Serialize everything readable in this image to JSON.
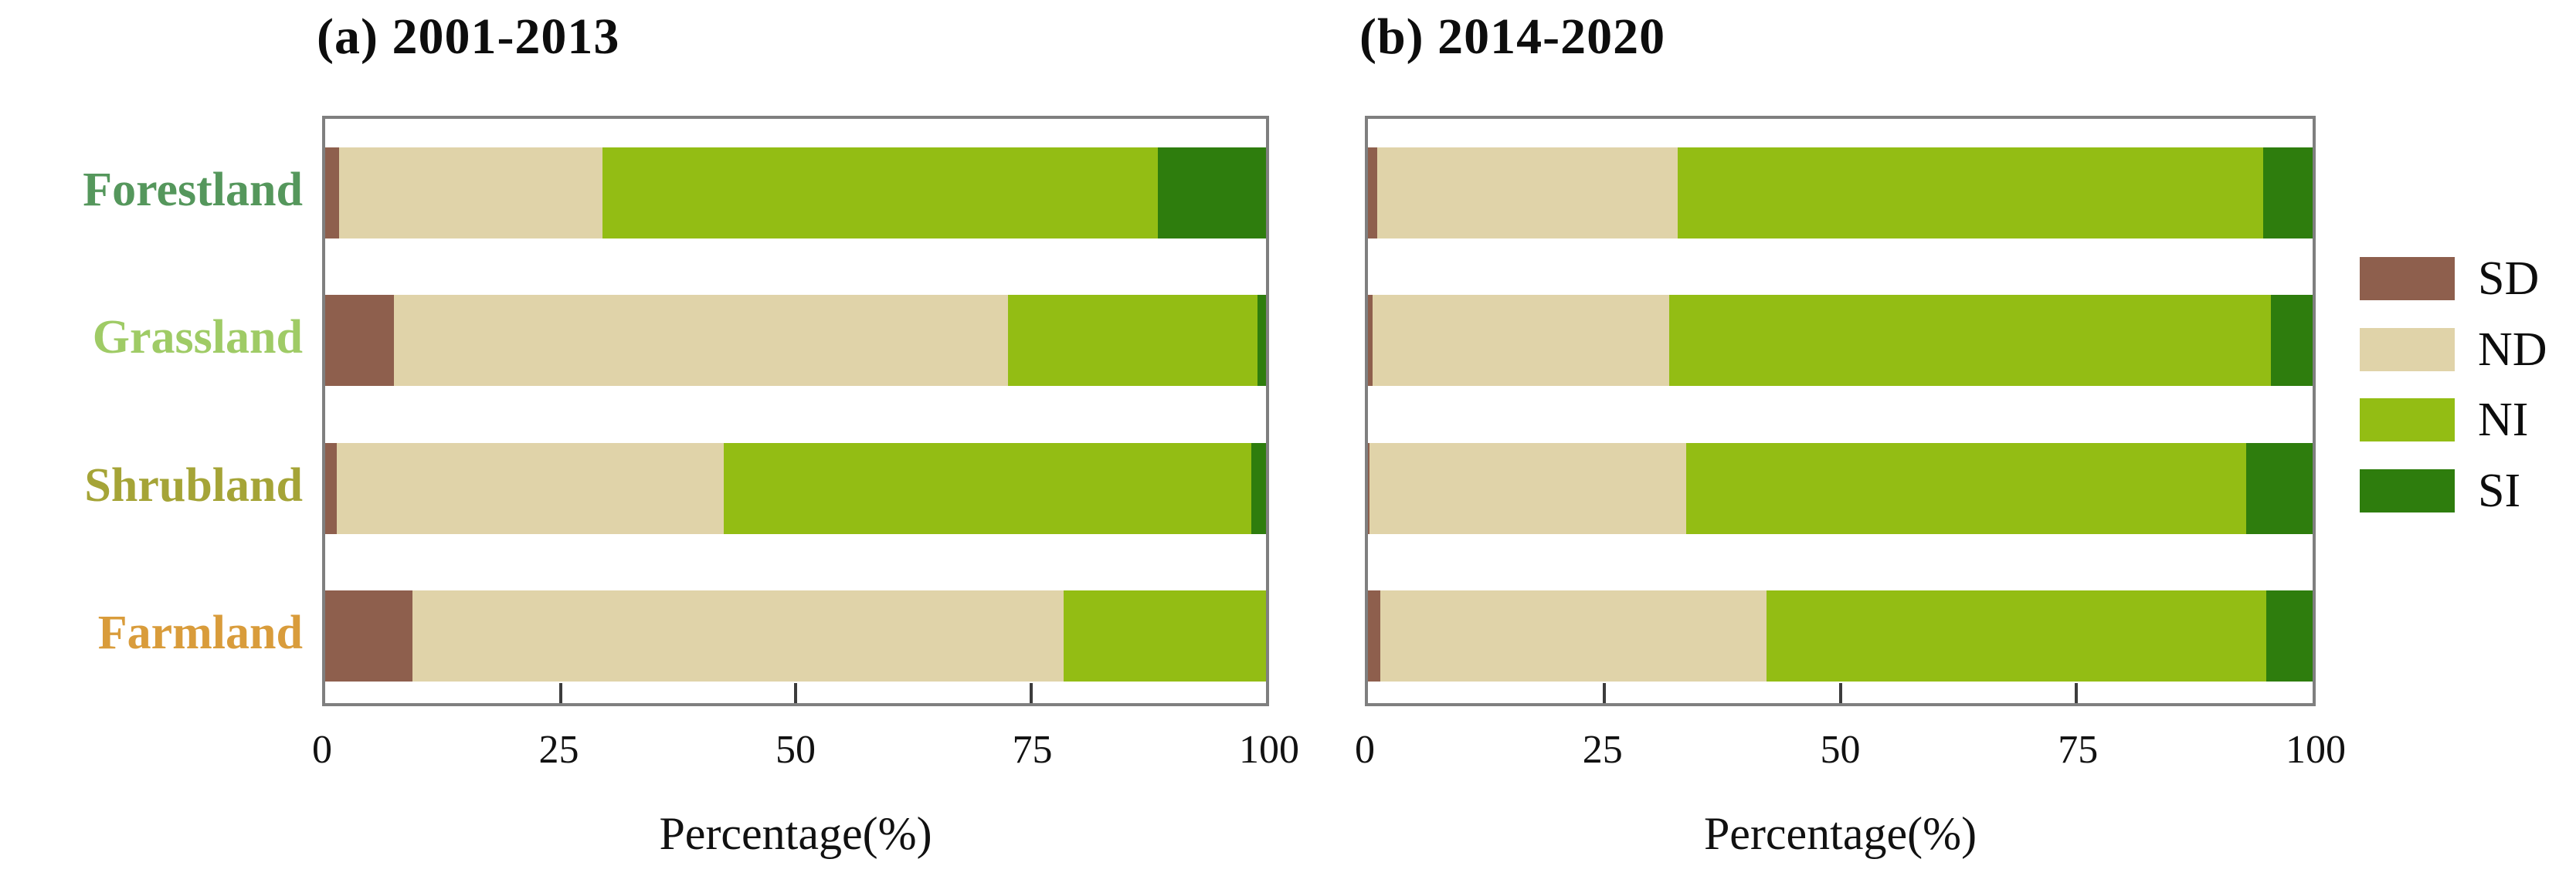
{
  "figure_background": "#ffffff",
  "colors": {
    "SD": "#8E5F4D",
    "ND": "#E0D3A9",
    "NI": "#93BD14",
    "SI": "#2E7D0D",
    "axis_frame": "#7f7f7f",
    "tick_mark": "#3c3c3c",
    "text": "#111111"
  },
  "category_colors": {
    "Forestland": "#55975C",
    "Grassland": "#9FCB66",
    "Shrubland": "#A5A437",
    "Farmland": "#D99C3B"
  },
  "legend": {
    "items": [
      {
        "label": "SD",
        "color": "#8E5F4D"
      },
      {
        "label": "ND",
        "color": "#E0D3A9"
      },
      {
        "label": "NI",
        "color": "#93BD14"
      },
      {
        "label": "SI",
        "color": "#2E7D0D"
      }
    ]
  },
  "chart_data": [
    {
      "type": "bar",
      "orientation": "horizontal",
      "stacked": true,
      "title": "(a) 2001-2013",
      "categories": [
        "Forestland",
        "Grassland",
        "Shrubland",
        "Farmland"
      ],
      "series": [
        {
          "name": "SD",
          "values": [
            1.5,
            7.3,
            1.2,
            9.3
          ]
        },
        {
          "name": "ND",
          "values": [
            28.0,
            65.3,
            41.2,
            69.2
          ]
        },
        {
          "name": "NI",
          "values": [
            59.0,
            26.5,
            56.0,
            21.5
          ]
        },
        {
          "name": "SI",
          "values": [
            11.5,
            0.9,
            1.6,
            0.0
          ]
        }
      ],
      "xlabel": "Percentage(%)",
      "xlim": [
        0,
        100
      ],
      "x_ticks": [
        0,
        25,
        50,
        75,
        100
      ],
      "grid": false,
      "legend_position": "right-of-figure"
    },
    {
      "type": "bar",
      "orientation": "horizontal",
      "stacked": true,
      "title": "(b) 2014-2020",
      "categories": [
        "Forestland",
        "Grassland",
        "Shrubland",
        "Farmland"
      ],
      "series": [
        {
          "name": "SD",
          "values": [
            1.0,
            0.5,
            0.2,
            1.3
          ]
        },
        {
          "name": "ND",
          "values": [
            31.8,
            31.4,
            33.5,
            40.9
          ]
        },
        {
          "name": "NI",
          "values": [
            62.0,
            63.7,
            59.3,
            52.9
          ]
        },
        {
          "name": "SI",
          "values": [
            5.2,
            4.4,
            7.0,
            4.9
          ]
        }
      ],
      "xlabel": "Percentage(%)",
      "xlim": [
        0,
        100
      ],
      "x_ticks": [
        0,
        25,
        50,
        75,
        100
      ],
      "grid": false,
      "legend_position": "right-of-figure"
    }
  ]
}
